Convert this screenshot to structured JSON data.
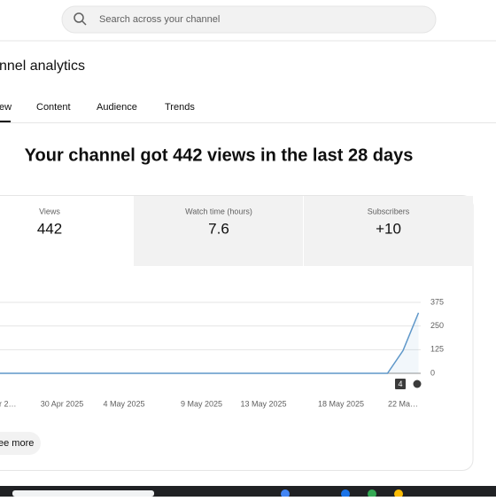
{
  "search_placeholder": "Search across your channel",
  "page_title": "nnel analytics",
  "tabs": [
    "ew",
    "Content",
    "Audience",
    "Trends"
  ],
  "headline": "Your channel got 442 views in the last 28 days",
  "metrics": [
    {
      "label": "Views",
      "value": 442
    },
    {
      "label": "Watch time (hours)",
      "value": 7.6
    },
    {
      "label": "Subscribers",
      "value": "+10"
    }
  ],
  "chart_data": {
    "type": "line",
    "categories": [
      "r 2…",
      null,
      null,
      null,
      "30 Apr 2025",
      null,
      null,
      null,
      "4 May 2025",
      null,
      null,
      null,
      null,
      "9 May 2025",
      null,
      null,
      null,
      "13 May 2025",
      null,
      null,
      null,
      null,
      "18 May 2025",
      null,
      null,
      null,
      "22 Ma…",
      null
    ],
    "values": [
      0,
      0,
      0,
      0,
      0,
      0,
      0,
      0,
      0,
      0,
      0,
      0,
      0,
      0,
      0,
      0,
      0,
      0,
      0,
      0,
      0,
      0,
      0,
      0,
      0,
      0,
      120,
      320
    ],
    "color": "#5e97c9",
    "ylim": [
      0,
      375
    ],
    "yticks": [
      0,
      125,
      250,
      375
    ],
    "grid": true,
    "badge": "4"
  },
  "see_more": "ee more"
}
